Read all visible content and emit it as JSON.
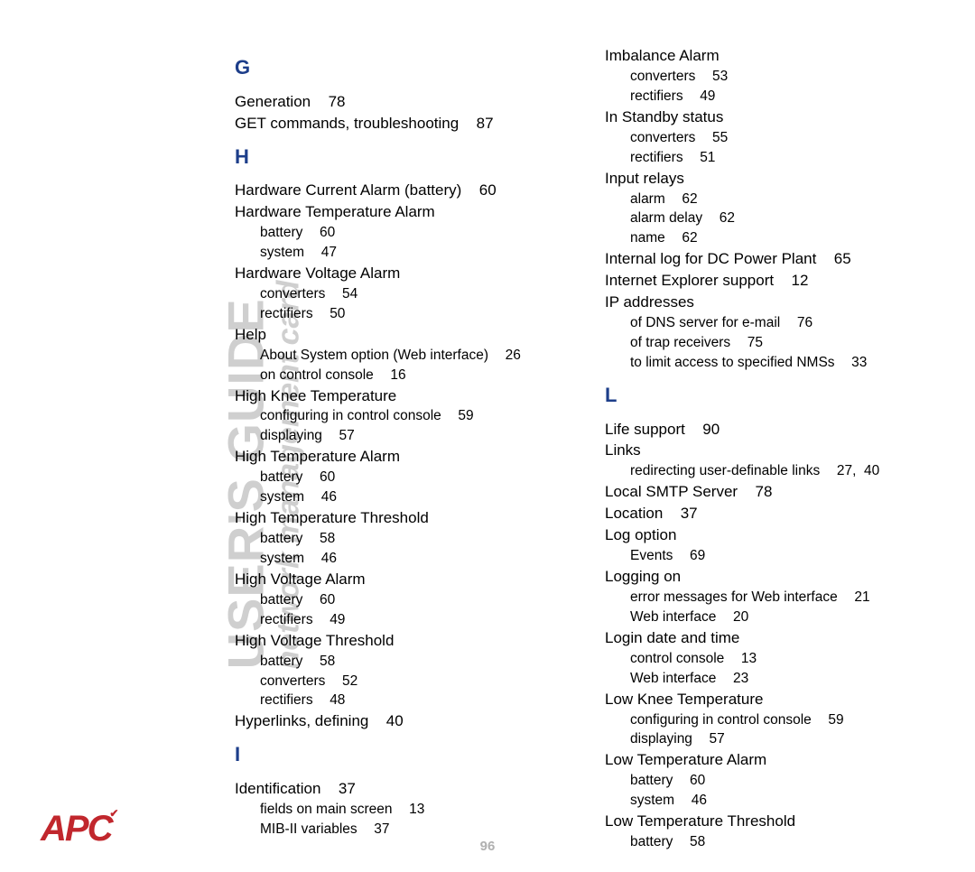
{
  "sidebar": {
    "title_main": "USER'S GUIDE",
    "title_sub": "network management card",
    "logo_text": "APC"
  },
  "page_number": "96",
  "colors": {
    "heading": "#1d3e8a",
    "body": "#000000",
    "sidebar_text": "#cfcfcf",
    "logo": "#c1272d",
    "pagenum": "#b0b0b0",
    "background": "#ffffff"
  },
  "typography": {
    "body_fontsize": 17,
    "sub_fontsize": 15.5,
    "heading_fontsize": 22,
    "sidebar_main_fontsize": 56,
    "sidebar_sub_fontsize": 34,
    "logo_fontsize": 40
  },
  "left_col": [
    {
      "kind": "letter",
      "text": "G"
    },
    {
      "kind": "main",
      "text": "Generation",
      "page": "78"
    },
    {
      "kind": "main",
      "text": "GET commands, troubleshooting",
      "page": "87"
    },
    {
      "kind": "letter",
      "text": "H"
    },
    {
      "kind": "main",
      "text": "Hardware Current Alarm (battery)",
      "page": "60"
    },
    {
      "kind": "main",
      "text": "Hardware Temperature Alarm",
      "page": ""
    },
    {
      "kind": "sub",
      "text": "battery",
      "page": "60"
    },
    {
      "kind": "sub",
      "text": "system",
      "page": "47"
    },
    {
      "kind": "main",
      "text": "Hardware Voltage Alarm",
      "page": ""
    },
    {
      "kind": "sub",
      "text": "converters",
      "page": "54"
    },
    {
      "kind": "sub",
      "text": "rectifiers",
      "page": "50"
    },
    {
      "kind": "main",
      "text": "Help",
      "page": ""
    },
    {
      "kind": "sub",
      "text": "About System option (Web interface)",
      "page": "26"
    },
    {
      "kind": "sub",
      "text": "on control console",
      "page": "16"
    },
    {
      "kind": "main",
      "text": "High Knee Temperature",
      "page": ""
    },
    {
      "kind": "sub",
      "text": "configuring in control console",
      "page": "59"
    },
    {
      "kind": "sub",
      "text": "displaying",
      "page": "57"
    },
    {
      "kind": "main",
      "text": "High Temperature Alarm",
      "page": ""
    },
    {
      "kind": "sub",
      "text": "battery",
      "page": "60"
    },
    {
      "kind": "sub",
      "text": "system",
      "page": "46"
    },
    {
      "kind": "main",
      "text": "High Temperature Threshold",
      "page": ""
    },
    {
      "kind": "sub",
      "text": "battery",
      "page": "58"
    },
    {
      "kind": "sub",
      "text": "system",
      "page": "46"
    },
    {
      "kind": "main",
      "text": "High Voltage Alarm",
      "page": ""
    },
    {
      "kind": "sub",
      "text": "battery",
      "page": "60"
    },
    {
      "kind": "sub",
      "text": "rectifiers",
      "page": "49"
    },
    {
      "kind": "main",
      "text": "High Voltage Threshold",
      "page": ""
    },
    {
      "kind": "sub",
      "text": "battery",
      "page": "58"
    },
    {
      "kind": "sub",
      "text": "converters",
      "page": "52"
    },
    {
      "kind": "sub",
      "text": "rectifiers",
      "page": "48"
    },
    {
      "kind": "main",
      "text": "Hyperlinks, defining",
      "page": "40"
    },
    {
      "kind": "letter",
      "text": "I"
    },
    {
      "kind": "main",
      "text": "Identification",
      "page": "37"
    },
    {
      "kind": "sub",
      "text": "fields on main screen",
      "page": "13"
    },
    {
      "kind": "sub",
      "text": "MIB-II variables",
      "page": "37"
    }
  ],
  "right_col": [
    {
      "kind": "main",
      "text": "Imbalance Alarm",
      "page": ""
    },
    {
      "kind": "sub",
      "text": "converters",
      "page": "53"
    },
    {
      "kind": "sub",
      "text": "rectifiers",
      "page": "49"
    },
    {
      "kind": "main",
      "text": "In Standby status",
      "page": ""
    },
    {
      "kind": "sub",
      "text": "converters",
      "page": "55"
    },
    {
      "kind": "sub",
      "text": "rectifiers",
      "page": "51"
    },
    {
      "kind": "main",
      "text": "Input relays",
      "page": ""
    },
    {
      "kind": "sub",
      "text": "alarm",
      "page": "62"
    },
    {
      "kind": "sub",
      "text": "alarm delay",
      "page": "62"
    },
    {
      "kind": "sub",
      "text": "name",
      "page": "62"
    },
    {
      "kind": "main",
      "text": "Internal log for DC Power Plant",
      "page": "65"
    },
    {
      "kind": "main",
      "text": "Internet Explorer support",
      "page": "12"
    },
    {
      "kind": "main",
      "text": "IP addresses",
      "page": ""
    },
    {
      "kind": "sub",
      "text": "of DNS server for e-mail",
      "page": "76"
    },
    {
      "kind": "sub",
      "text": "of trap receivers",
      "page": "75"
    },
    {
      "kind": "sub",
      "text": "to limit access to specified NMSs",
      "page": "33"
    },
    {
      "kind": "letter",
      "text": "L"
    },
    {
      "kind": "main",
      "text": "Life support",
      "page": "90"
    },
    {
      "kind": "main",
      "text": "Links",
      "page": ""
    },
    {
      "kind": "sub",
      "text": "redirecting user-definable links",
      "page": "27,  40"
    },
    {
      "kind": "main",
      "text": "Local SMTP Server",
      "page": "78"
    },
    {
      "kind": "main",
      "text": "Location",
      "page": "37"
    },
    {
      "kind": "main",
      "text": "Log option",
      "page": ""
    },
    {
      "kind": "sub",
      "text": "Events",
      "page": "69"
    },
    {
      "kind": "main",
      "text": "Logging on",
      "page": ""
    },
    {
      "kind": "sub",
      "text": "error messages for Web interface",
      "page": "21"
    },
    {
      "kind": "sub",
      "text": "Web interface",
      "page": "20"
    },
    {
      "kind": "main",
      "text": "Login date and time",
      "page": ""
    },
    {
      "kind": "sub",
      "text": "control console",
      "page": "13"
    },
    {
      "kind": "sub",
      "text": "Web interface",
      "page": "23"
    },
    {
      "kind": "main",
      "text": "Low Knee Temperature",
      "page": ""
    },
    {
      "kind": "sub",
      "text": "configuring in control console",
      "page": "59"
    },
    {
      "kind": "sub",
      "text": "displaying",
      "page": "57"
    },
    {
      "kind": "main",
      "text": "Low Temperature Alarm",
      "page": ""
    },
    {
      "kind": "sub",
      "text": "battery",
      "page": "60"
    },
    {
      "kind": "sub",
      "text": "system",
      "page": "46"
    },
    {
      "kind": "main",
      "text": "Low Temperature Threshold",
      "page": ""
    },
    {
      "kind": "sub",
      "text": "battery",
      "page": "58"
    }
  ]
}
